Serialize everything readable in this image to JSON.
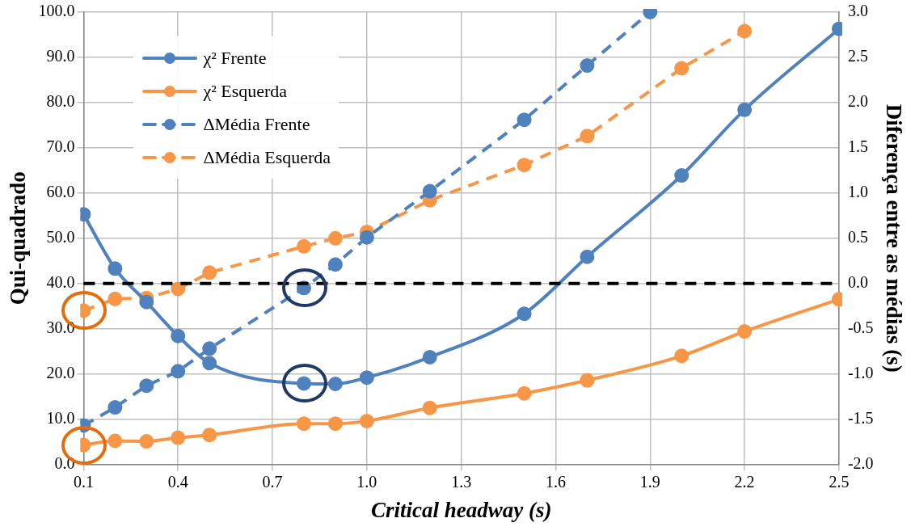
{
  "chart_data": {
    "type": "line",
    "xlabel": "Critical headway (s)",
    "ylabel": "Qui-quadrado",
    "y2label": "Diferença entre as médias (s)",
    "x": [
      0.1,
      0.2,
      0.3,
      0.4,
      0.5,
      0.8,
      0.9,
      1.0,
      1.2,
      1.5,
      1.7,
      2.0,
      2.2,
      2.5
    ],
    "series": [
      {
        "name": "χ² Frente",
        "color": "#4f81bd",
        "line_style": "solid",
        "values": [
          55.3,
          43.3,
          35.9,
          28.4,
          22.4,
          17.9,
          17.8,
          19.2,
          23.7,
          33.3,
          45.9,
          63.9,
          78.4,
          96.3
        ]
      },
      {
        "name": "χ² Esquerda",
        "color": "#f79646",
        "line_style": "solid",
        "values": [
          4.3,
          5.2,
          5.1,
          5.9,
          6.5,
          9.0,
          9.0,
          9.6,
          12.5,
          15.7,
          18.6,
          24.0,
          29.4,
          36.5
        ]
      },
      {
        "name": "ΔMédia Frente",
        "color": "#4f81bd",
        "line_style": "dashed",
        "axis": "y2",
        "x": [
          0.1,
          0.2,
          0.3,
          0.4,
          0.5,
          0.8,
          0.9,
          1.0,
          1.2,
          1.5,
          1.7,
          1.9
        ],
        "values": [
          -1.57,
          -1.37,
          -1.13,
          -0.97,
          -0.72,
          -0.05,
          0.21,
          0.51,
          1.02,
          1.81,
          2.41,
          3.0
        ]
      },
      {
        "name": "ΔMédia Esquerda",
        "color": "#f79646",
        "line_style": "dashed",
        "axis": "y2",
        "x": [
          0.1,
          0.2,
          0.3,
          0.4,
          0.5,
          0.8,
          0.9,
          1.0,
          1.2,
          1.5,
          1.7,
          2.0,
          2.2
        ],
        "values": [
          -0.3,
          -0.17,
          -0.16,
          -0.06,
          0.12,
          0.41,
          0.5,
          0.57,
          0.92,
          1.31,
          1.63,
          2.38,
          2.79
        ]
      }
    ],
    "marker": "circle",
    "xlim": [
      0.1,
      2.5
    ],
    "xticks": [
      {
        "value": 0.1,
        "label": "0.1"
      },
      {
        "value": 0.4,
        "label": "0.4"
      },
      {
        "value": 0.7,
        "label": "0.7"
      },
      {
        "value": 1.0,
        "label": "1.0"
      },
      {
        "value": 1.3,
        "label": "1.3"
      },
      {
        "value": 1.6,
        "label": "1.6"
      },
      {
        "value": 1.9,
        "label": "1.9"
      },
      {
        "value": 2.2,
        "label": "2.2"
      },
      {
        "value": 2.5,
        "label": "2.5"
      }
    ],
    "ylim": [
      0,
      100
    ],
    "yticks": [
      {
        "value": 0,
        "label": "0.0"
      },
      {
        "value": 10,
        "label": "10.0"
      },
      {
        "value": 20,
        "label": "20.0"
      },
      {
        "value": 30,
        "label": "30.0"
      },
      {
        "value": 40,
        "label": "40.0"
      },
      {
        "value": 50,
        "label": "50.0"
      },
      {
        "value": 60,
        "label": "60.0"
      },
      {
        "value": 70,
        "label": "70.0"
      },
      {
        "value": 80,
        "label": "80.0"
      },
      {
        "value": 90,
        "label": "90.0"
      },
      {
        "value": 100,
        "label": "100.0"
      }
    ],
    "y2lim": [
      -2,
      3
    ],
    "y2ticks": [
      {
        "value": -2,
        "label": "-2.0"
      },
      {
        "value": -1.5,
        "label": "-1.5"
      },
      {
        "value": -1,
        "label": "-1.0"
      },
      {
        "value": -0.5,
        "label": "-0.5"
      },
      {
        "value": 0,
        "label": "0.0"
      },
      {
        "value": 0.5,
        "label": "0.5"
      },
      {
        "value": 1,
        "label": "1.0"
      },
      {
        "value": 1.5,
        "label": "1.5"
      },
      {
        "value": 2,
        "label": "2.0"
      },
      {
        "value": 2.5,
        "label": "2.5"
      },
      {
        "value": 3,
        "label": "3.0"
      }
    ],
    "ref_lines": [
      {
        "axis": "y2",
        "value": 0,
        "color": "#000000",
        "line_style": "dashed"
      }
    ],
    "grid": true,
    "legend": "top left"
  }
}
